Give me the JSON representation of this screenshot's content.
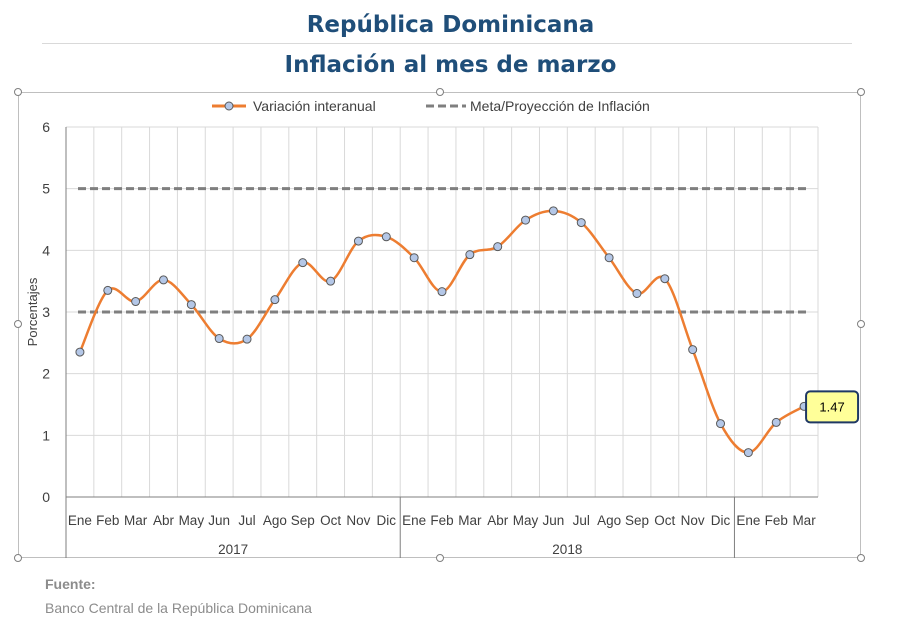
{
  "title": "República Dominicana",
  "subtitle": "Inflación al mes de marzo",
  "source_label": "Fuente:",
  "source_text": "Banco Central de la República Dominicana",
  "chart_data": {
    "type": "line",
    "title": "República Dominicana",
    "subtitle": "Inflación al mes de marzo",
    "ylabel": "Porcentajes",
    "xlabel": "",
    "ylim": [
      0,
      6
    ],
    "yticks": [
      0,
      1,
      2,
      3,
      4,
      5,
      6
    ],
    "grid": true,
    "legend_position": "top",
    "categories": [
      "Ene",
      "Feb",
      "Mar",
      "Abr",
      "May",
      "Jun",
      "Jul",
      "Ago",
      "Sep",
      "Oct",
      "Nov",
      "Dic",
      "Ene",
      "Feb",
      "Mar",
      "Abr",
      "May",
      "Jun",
      "Jul",
      "Ago",
      "Sep",
      "Oct",
      "Nov",
      "Dic",
      "Ene",
      "Feb",
      "Mar"
    ],
    "groups": [
      {
        "label": "2017",
        "count": 12
      },
      {
        "label": "2018",
        "count": 12
      },
      {
        "label": "",
        "count": 3
      }
    ],
    "series": [
      {
        "name": "Variación interanual",
        "color": "#ed7d31",
        "marker_color": "#b4c7e7",
        "values": [
          2.35,
          3.35,
          3.17,
          3.52,
          3.12,
          2.57,
          2.56,
          3.2,
          3.8,
          3.5,
          4.15,
          4.22,
          3.88,
          3.33,
          3.93,
          4.06,
          4.49,
          4.64,
          4.45,
          3.88,
          3.3,
          3.54,
          2.39,
          1.19,
          0.72,
          1.21,
          1.47
        ]
      },
      {
        "name": "Meta/Proyección de Inflación",
        "color": "#7f7f7f",
        "style": "dashed",
        "bands": [
          5,
          3
        ]
      }
    ],
    "annotation": {
      "label": "1.47",
      "index": 26
    }
  }
}
